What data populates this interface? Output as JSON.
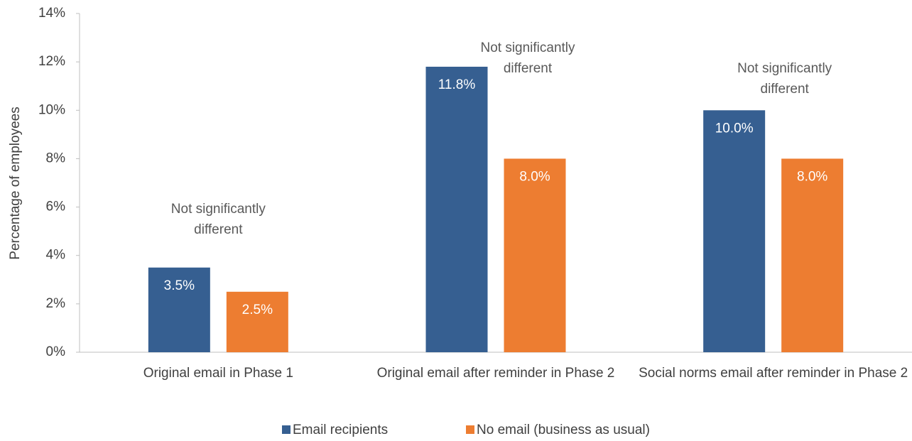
{
  "chart_data": {
    "type": "bar",
    "y_label": "Percentage of employees",
    "categories": [
      "Original email in Phase 1",
      "Original email after reminder in Phase 2",
      "Social norms email after reminder in Phase 2"
    ],
    "series": [
      {
        "name": "Email recipients",
        "color": "#365f91",
        "values": [
          3.5,
          11.8,
          10.0
        ],
        "value_labels": [
          "3.5%",
          "11.8%",
          "10.0%"
        ]
      },
      {
        "name": "No email (business as usual)",
        "color": "#ed7d31",
        "values": [
          2.5,
          8.0,
          8.0
        ],
        "value_labels": [
          "2.5%",
          "8.0%",
          "8.0%"
        ]
      }
    ],
    "annotations": [
      [
        "Not significantly",
        "different"
      ],
      [
        "Not significantly",
        "different"
      ],
      [
        "Not significantly",
        "different"
      ]
    ],
    "ylim": [
      0,
      14
    ],
    "yticks": [
      {
        "value": 0,
        "label": "0%"
      },
      {
        "value": 2,
        "label": "2%"
      },
      {
        "value": 4,
        "label": "4%"
      },
      {
        "value": 6,
        "label": "6%"
      },
      {
        "value": 8,
        "label": "8%"
      },
      {
        "value": 10,
        "label": "10%"
      },
      {
        "value": 12,
        "label": "12%"
      },
      {
        "value": 14,
        "label": "14%"
      }
    ],
    "legend": "bottom"
  }
}
